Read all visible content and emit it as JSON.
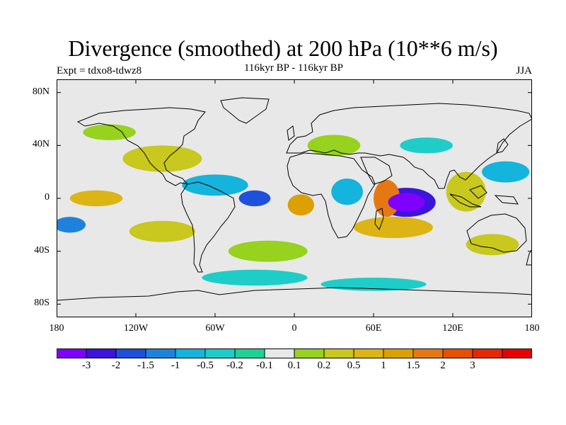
{
  "title": "Divergence (smoothed) at 200 hPa (10**6 m/s)",
  "subtitle": "116kyr BP - 116kyr BP",
  "expt_label": "Expt = tdxo8-tdwz8",
  "season": "JJA",
  "map": {
    "projection": "cylindrical-equidistant",
    "lon_range": [
      -180,
      180
    ],
    "lat_range": [
      -90,
      90
    ],
    "x_ticks": [
      {
        "label": "180",
        "lon": -180
      },
      {
        "label": "120W",
        "lon": -120
      },
      {
        "label": "60W",
        "lon": -60
      },
      {
        "label": "0",
        "lon": 0
      },
      {
        "label": "60E",
        "lon": 60
      },
      {
        "label": "120E",
        "lon": 120
      },
      {
        "label": "180",
        "lon": 180
      }
    ],
    "y_ticks": [
      {
        "label": "80N",
        "lat": 80
      },
      {
        "label": "40N",
        "lat": 40
      },
      {
        "label": "0",
        "lat": 0
      },
      {
        "label": "40S",
        "lat": -40
      },
      {
        "label": "80S",
        "lat": -80
      }
    ],
    "blobs": [
      {
        "lon": 85,
        "lat": -3,
        "rlon": 14,
        "rlat": 7,
        "value": -3
      },
      {
        "lon": 85,
        "lat": -3,
        "rlon": 22,
        "rlat": 11,
        "value": -2
      },
      {
        "lon": 70,
        "lat": 0,
        "rlon": 10,
        "rlat": 14,
        "value": 2
      },
      {
        "lon": 75,
        "lat": -22,
        "rlon": 30,
        "rlat": 8,
        "value": 1
      },
      {
        "lon": 5,
        "lat": -5,
        "rlon": 10,
        "rlat": 8,
        "value": 1.5
      },
      {
        "lon": -30,
        "lat": 0,
        "rlon": 12,
        "rlat": 6,
        "value": -1.5
      },
      {
        "lon": -150,
        "lat": 0,
        "rlon": 20,
        "rlat": 6,
        "value": 1
      },
      {
        "lon": -170,
        "lat": -20,
        "rlon": 12,
        "rlat": 6,
        "value": -1
      },
      {
        "lon": -100,
        "lat": 30,
        "rlon": 30,
        "rlat": 10,
        "value": 0.5
      },
      {
        "lon": -60,
        "lat": 10,
        "rlon": 25,
        "rlat": 8,
        "value": -0.5
      },
      {
        "lon": 130,
        "lat": 5,
        "rlon": 15,
        "rlat": 15,
        "value": 0.5
      },
      {
        "lon": 40,
        "lat": 5,
        "rlon": 12,
        "rlat": 10,
        "value": -0.5
      },
      {
        "lon": -20,
        "lat": -40,
        "rlon": 30,
        "rlat": 8,
        "value": 0.2
      },
      {
        "lon": 100,
        "lat": 40,
        "rlon": 20,
        "rlat": 6,
        "value": -0.2
      },
      {
        "lon": -140,
        "lat": 50,
        "rlon": 20,
        "rlat": 6,
        "value": 0.2
      },
      {
        "lon": 150,
        "lat": -35,
        "rlon": 20,
        "rlat": 8,
        "value": 0.5
      },
      {
        "lon": -30,
        "lat": -60,
        "rlon": 40,
        "rlat": 6,
        "value": -0.2
      },
      {
        "lon": 60,
        "lat": -65,
        "rlon": 40,
        "rlat": 5,
        "value": -0.2
      },
      {
        "lon": 160,
        "lat": 20,
        "rlon": 18,
        "rlat": 8,
        "value": -0.5
      },
      {
        "lon": 30,
        "lat": 40,
        "rlon": 20,
        "rlat": 8,
        "value": 0.2
      },
      {
        "lon": -100,
        "lat": -25,
        "rlon": 25,
        "rlat": 8,
        "value": 0.5
      }
    ]
  },
  "colorbar": {
    "colors": [
      "#7f00ff",
      "#3c14dc",
      "#1e50dc",
      "#1e82dc",
      "#14b4dc",
      "#1ecdc8",
      "#1ed296",
      "#e8e8e8",
      "#96d21e",
      "#c8c81e",
      "#dcb414",
      "#dca000",
      "#e67814",
      "#e65000",
      "#e62800",
      "#e60000"
    ],
    "labels": [
      "-3",
      "-2",
      "-1.5",
      "-1",
      "-0.5",
      "-0.2",
      "-0.1",
      "0.1",
      "0.2",
      "0.5",
      "1",
      "1.5",
      "2",
      "3"
    ],
    "levels": [
      -3,
      -2,
      -1.5,
      -1,
      -0.5,
      -0.2,
      -0.1,
      0.1,
      0.2,
      0.5,
      1,
      1.5,
      2,
      3
    ]
  }
}
